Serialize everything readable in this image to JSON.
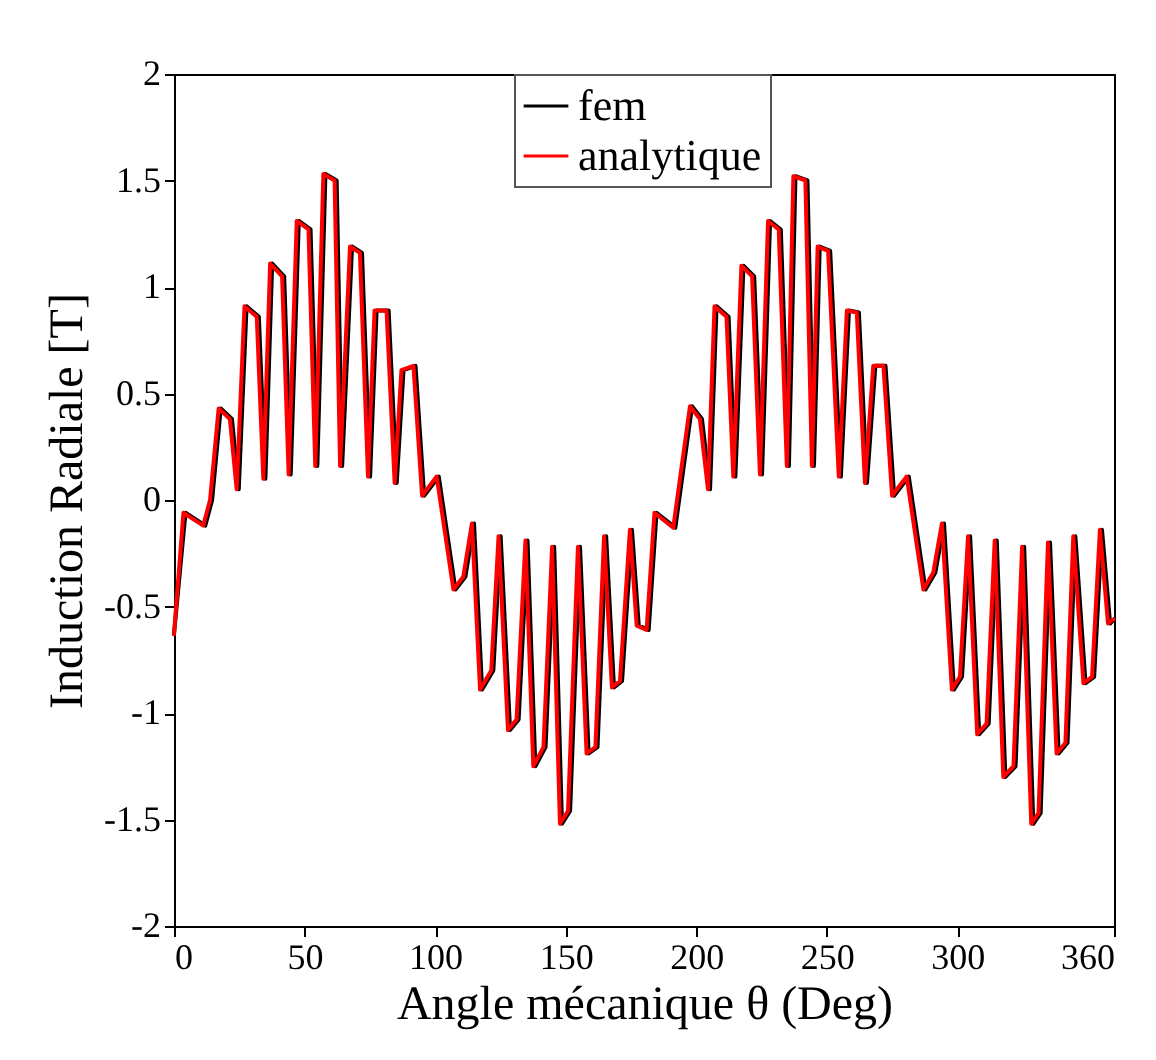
{
  "chart_data": {
    "type": "line",
    "xlabel": "Angle mécanique θ (Deg)",
    "ylabel": "Induction Radiale [T]",
    "xlim": [
      0,
      360
    ],
    "xticks": [
      0,
      50,
      100,
      150,
      200,
      250,
      300,
      360
    ],
    "ylim": [
      -2,
      2
    ],
    "yticks": [
      -2,
      -1.5,
      -1,
      -0.5,
      0,
      0.5,
      1,
      1.5,
      2
    ],
    "grid": false,
    "legend": "top",
    "line_style": "solid",
    "marker": "none",
    "series": [
      {
        "name": "fem",
        "color": "#000000",
        "x": [
          0,
          4.4,
          12,
          14.6,
          17.9,
          22.2,
          24.8,
          27.8,
          32.5,
          35,
          37.6,
          42.2,
          44.7,
          47.8,
          52.3,
          54.9,
          58,
          62.3,
          64.4,
          68.2,
          72,
          75.1,
          77.6,
          82.2,
          85.3,
          87.9,
          92.5,
          95.8,
          101.4,
          107.8,
          111.6,
          114.9,
          118,
          122.3,
          125.1,
          128.7,
          132,
          135.4,
          138.4,
          142.3,
          145.6,
          148.6,
          151.7,
          155.5,
          158.8,
          162.2,
          165.5,
          168.5,
          171.6,
          175.4,
          178,
          181.8,
          184.8,
          192,
          198.4,
          202.2,
          205.3,
          207.8,
          212.4,
          215,
          218.1,
          222.2,
          225.2,
          228.3,
          232.4,
          235.5,
          238,
          242.6,
          245.1,
          247.3,
          251.3,
          255.4,
          258.5,
          262.3,
          265.4,
          268.6,
          272.5,
          275.8,
          281.4,
          287.8,
          291.6,
          294.9,
          298.7,
          301.8,
          304.9,
          308.4,
          312,
          315.1,
          318.4,
          322.3,
          325.6,
          329.1,
          331.9,
          335.5,
          338.8,
          342.2,
          345.2,
          349.1,
          352.4,
          355.4,
          358.5,
          360
        ],
        "values": [
          -0.63,
          -0.06,
          -0.12,
          0,
          0.43,
          0.38,
          0.05,
          0.91,
          0.86,
          0.1,
          1.11,
          1.05,
          0.12,
          1.31,
          1.27,
          0.16,
          1.53,
          1.5,
          0.16,
          1.19,
          1.16,
          0.11,
          0.89,
          0.89,
          0.08,
          0.61,
          0.63,
          0.02,
          0.11,
          -0.42,
          -0.36,
          -0.11,
          -0.89,
          -0.8,
          -0.17,
          -1.08,
          -1.03,
          -0.19,
          -1.25,
          -1.16,
          -0.22,
          -1.52,
          -1.46,
          -0.22,
          -1.19,
          -1.16,
          -0.17,
          -0.88,
          -0.85,
          -0.14,
          -0.59,
          -0.61,
          -0.06,
          -0.13,
          0.44,
          0.38,
          0.05,
          0.91,
          0.86,
          0.11,
          1.1,
          1.05,
          0.12,
          1.31,
          1.27,
          0.16,
          1.52,
          1.5,
          0.16,
          1.19,
          1.17,
          0.11,
          0.89,
          0.88,
          0.08,
          0.63,
          0.63,
          0.02,
          0.11,
          -0.42,
          -0.34,
          -0.11,
          -0.89,
          -0.83,
          -0.17,
          -1.1,
          -1.05,
          -0.19,
          -1.3,
          -1.25,
          -0.22,
          -1.52,
          -1.47,
          -0.2,
          -1.19,
          -1.14,
          -0.17,
          -0.86,
          -0.83,
          -0.14,
          -0.58,
          -0.56
        ]
      },
      {
        "name": "analytique",
        "color": "#ff0000",
        "x": [
          0,
          3.6,
          11.2,
          13.8,
          17.1,
          21.4,
          24,
          27,
          31.7,
          34.2,
          36.8,
          41.4,
          43.9,
          47,
          51.5,
          54.1,
          57.2,
          61.5,
          63.6,
          67.4,
          71.2,
          74.3,
          76.8,
          81.4,
          84.5,
          87.1,
          91.7,
          95,
          100.6,
          107,
          110.8,
          114.1,
          117.2,
          121.5,
          124.3,
          127.9,
          131.2,
          134.6,
          137.6,
          141.5,
          144.8,
          147.8,
          150.9,
          154.7,
          158,
          161.4,
          164.7,
          167.7,
          170.8,
          174.6,
          177.2,
          181,
          184,
          191.2,
          197.6,
          201.4,
          204.5,
          207,
          211.6,
          214.2,
          217.3,
          221.4,
          224.4,
          227.5,
          231.6,
          234.7,
          237.2,
          241.8,
          244.3,
          246.5,
          250.5,
          254.6,
          257.7,
          261.5,
          264.6,
          267.8,
          271.7,
          275,
          280.6,
          287,
          290.8,
          294.1,
          297.9,
          301,
          304.1,
          307.6,
          311.2,
          314.3,
          317.6,
          321.5,
          324.8,
          328.3,
          331.1,
          334.7,
          338,
          341.4,
          344.4,
          348.3,
          351.6,
          354.6,
          357.7,
          359.8
        ],
        "values": [
          -0.63,
          -0.06,
          -0.12,
          0,
          0.43,
          0.38,
          0.05,
          0.91,
          0.86,
          0.1,
          1.11,
          1.05,
          0.12,
          1.31,
          1.27,
          0.16,
          1.53,
          1.5,
          0.16,
          1.19,
          1.16,
          0.11,
          0.89,
          0.89,
          0.08,
          0.61,
          0.63,
          0.02,
          0.11,
          -0.42,
          -0.36,
          -0.11,
          -0.89,
          -0.8,
          -0.17,
          -1.08,
          -1.03,
          -0.19,
          -1.25,
          -1.16,
          -0.22,
          -1.52,
          -1.46,
          -0.22,
          -1.19,
          -1.16,
          -0.17,
          -0.88,
          -0.85,
          -0.14,
          -0.59,
          -0.61,
          -0.06,
          -0.13,
          0.44,
          0.38,
          0.05,
          0.91,
          0.86,
          0.11,
          1.1,
          1.05,
          0.12,
          1.31,
          1.27,
          0.16,
          1.52,
          1.5,
          0.16,
          1.19,
          1.17,
          0.11,
          0.89,
          0.88,
          0.08,
          0.63,
          0.63,
          0.02,
          0.11,
          -0.42,
          -0.34,
          -0.11,
          -0.89,
          -0.83,
          -0.17,
          -1.1,
          -1.05,
          -0.19,
          -1.3,
          -1.25,
          -0.22,
          -1.52,
          -1.47,
          -0.2,
          -1.19,
          -1.14,
          -0.17,
          -0.86,
          -0.83,
          -0.14,
          -0.58,
          -0.56
        ]
      }
    ]
  }
}
